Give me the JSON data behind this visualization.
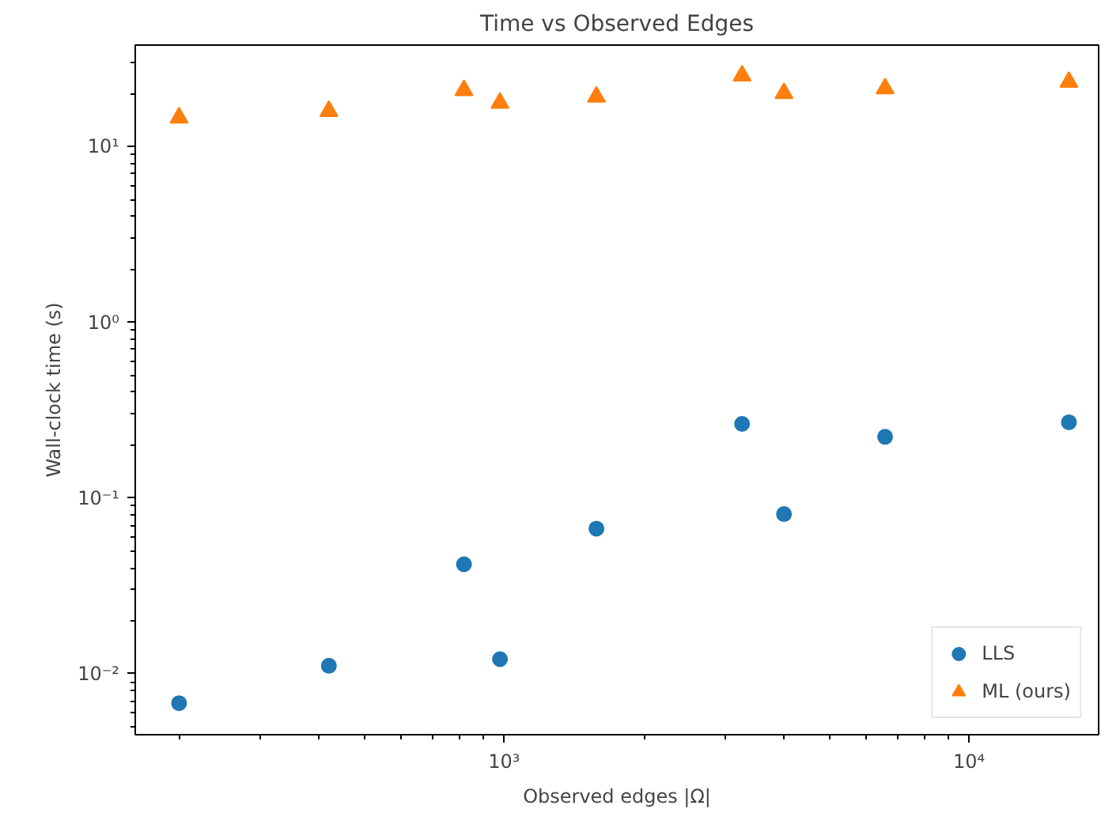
{
  "chart_data": {
    "type": "scatter",
    "title": "Time vs Observed Edges",
    "xlabel": "Observed edges |Ω|",
    "ylabel": "Wall-clock time (s)",
    "log": "xy",
    "grid": false,
    "legend": "bottom right",
    "xlim": [
      161,
      19000
    ],
    "ylim": [
      0.0045,
      37.8
    ],
    "xticks": [
      {
        "value": 1000,
        "label": "10³"
      },
      {
        "value": 10000,
        "label": "10⁴"
      }
    ],
    "yticks": [
      {
        "value": 0.01,
        "label": "10⁻²"
      },
      {
        "value": 0.1,
        "label": "10⁻¹"
      },
      {
        "value": 1,
        "label": "10⁰"
      },
      {
        "value": 10,
        "label": "10¹"
      }
    ],
    "x": [
      200,
      420,
      820,
      980,
      1580,
      3250,
      4000,
      6600,
      16400
    ],
    "series": [
      {
        "name": "LLS",
        "color": "#1f77b4",
        "marker": "circle",
        "values": [
          0.0068,
          0.0111,
          0.042,
          0.0121,
          0.067,
          0.264,
          0.081,
          0.223,
          0.27
        ]
      },
      {
        "name": "ML (ours)",
        "color": "#ff7f0e",
        "marker": "triangle",
        "values": [
          14.6,
          15.9,
          20.9,
          17.7,
          19.2,
          25.3,
          20.1,
          21.4,
          23.3
        ]
      }
    ]
  }
}
